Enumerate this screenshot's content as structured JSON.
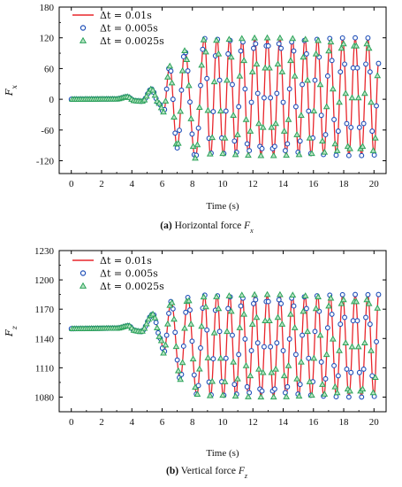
{
  "colors": {
    "series1": "#e8262c",
    "series2": "#1f4fb8",
    "series3": "#2ca35a",
    "series3_fill": "#b9e3c4"
  },
  "chart_data": [
    {
      "type": "line",
      "caption_id": "(a)",
      "caption_text": "Horizontal force",
      "caption_symbol": "F",
      "caption_sub": "x",
      "xlabel": "Time (s)",
      "ylabel": "F",
      "ylabel_sub": "x",
      "xlim": [
        -0.8,
        20.8
      ],
      "ylim": [
        -145,
        180
      ],
      "xticks": [
        0,
        2,
        4,
        6,
        8,
        10,
        12,
        14,
        16,
        18,
        20
      ],
      "yticks": [
        -120,
        -60,
        0,
        60,
        120,
        180
      ],
      "legend_position": "top-left",
      "series": [
        {
          "name": "Δt = 0.01s",
          "style": "line"
        },
        {
          "name": "Δt = 0.005s",
          "style": "circle"
        },
        {
          "name": "Δt = 0.0025s",
          "style": "triangle"
        }
      ],
      "signal": {
        "baseline": 0,
        "startup": [
          [
            0,
            0
          ],
          [
            3.0,
            0.5
          ],
          [
            3.7,
            5
          ],
          [
            4.2,
            -3
          ],
          [
            4.7,
            -4
          ],
          [
            5.3,
            20
          ],
          [
            5.8,
            -8
          ],
          [
            6.1,
            -25
          ],
          [
            6.5,
            65
          ],
          [
            7.0,
            -95
          ],
          [
            7.5,
            95
          ],
          [
            8.2,
            -115
          ],
          [
            8.8,
            120
          ],
          [
            9.2,
            -110
          ]
        ],
        "period": 0.83,
        "peak_start_time": 8.8,
        "max": 120,
        "min": -110,
        "end_time": 20.3,
        "end_value": 70
      }
    },
    {
      "type": "line",
      "caption_id": "(b)",
      "caption_text": "Vertical force",
      "caption_symbol": "F",
      "caption_sub": "z",
      "xlabel": "Time (s)",
      "ylabel": "F",
      "ylabel_sub": "z",
      "xlim": [
        -0.8,
        20.8
      ],
      "ylim": [
        1065,
        1230
      ],
      "xticks": [
        0,
        2,
        4,
        6,
        8,
        10,
        12,
        14,
        16,
        18,
        20
      ],
      "yticks": [
        1080,
        1110,
        1140,
        1170,
        1200,
        1230
      ],
      "legend_position": "top-left",
      "series": [
        {
          "name": "Δt = 0.01s",
          "style": "line"
        },
        {
          "name": "Δt = 0.005s",
          "style": "circle"
        },
        {
          "name": "Δt = 0.0025s",
          "style": "triangle"
        }
      ],
      "signal": {
        "baseline": 1150,
        "startup": [
          [
            0,
            1150
          ],
          [
            3.0,
            1150.5
          ],
          [
            3.8,
            1153
          ],
          [
            4.2,
            1148
          ],
          [
            4.6,
            1147
          ],
          [
            5.4,
            1165
          ],
          [
            5.9,
            1140
          ],
          [
            6.1,
            1125
          ],
          [
            6.6,
            1178
          ],
          [
            7.2,
            1098
          ],
          [
            7.7,
            1182
          ],
          [
            8.3,
            1082
          ],
          [
            8.8,
            1185
          ],
          [
            9.2,
            1080
          ]
        ],
        "period": 0.83,
        "peak_start_time": 8.8,
        "max": 1185,
        "min": 1080,
        "end_time": 20.3,
        "end_value": 1185
      }
    }
  ]
}
